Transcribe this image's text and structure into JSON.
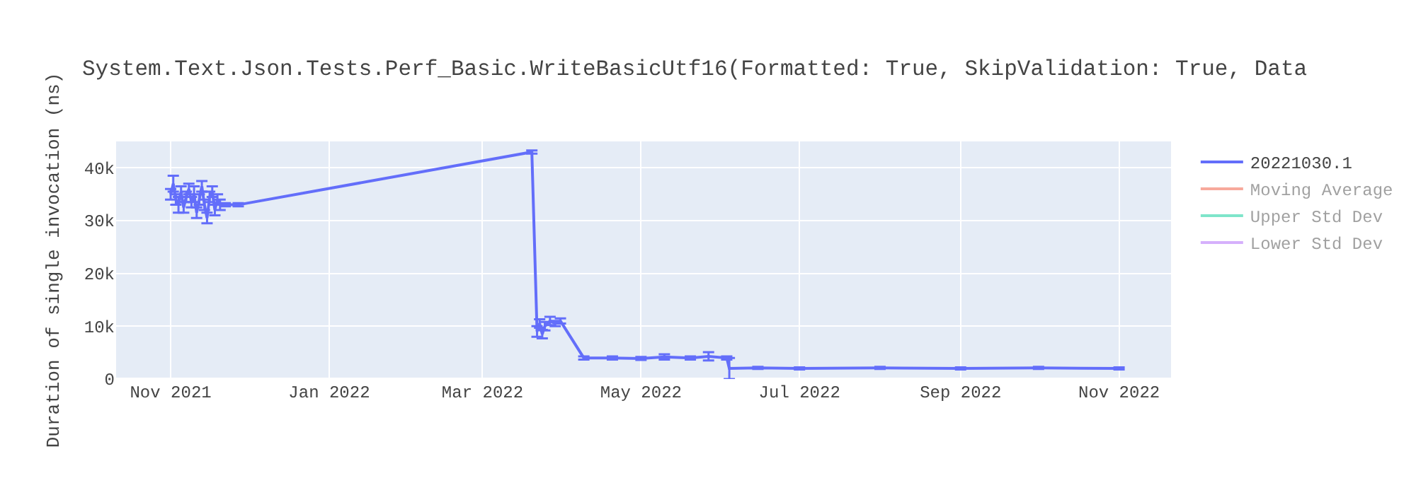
{
  "chart_data": {
    "type": "line",
    "title": "System.Text.Json.Tests.Perf_Basic.WriteBasicUtf16(Formatted: True, SkipValidation: True, Data",
    "ylabel": "Duration of single invocation (ns)",
    "x": [
      "2021-11-01",
      "2021-11-02",
      "2021-11-03",
      "2021-11-04",
      "2021-11-05",
      "2021-11-06",
      "2021-11-07",
      "2021-11-08",
      "2021-11-09",
      "2021-11-10",
      "2021-11-11",
      "2021-11-12",
      "2021-11-13",
      "2021-11-14",
      "2021-11-15",
      "2021-11-16",
      "2021-11-17",
      "2021-11-18",
      "2021-11-19",
      "2021-11-20",
      "2021-11-22",
      "2021-11-27",
      "2022-03-20",
      "2022-03-22",
      "2022-03-23",
      "2022-03-24",
      "2022-03-25",
      "2022-03-27",
      "2022-03-29",
      "2022-03-31",
      "2022-04-09",
      "2022-04-20",
      "2022-05-01",
      "2022-05-10",
      "2022-05-20",
      "2022-05-27",
      "2022-06-03",
      "2022-06-04",
      "2022-06-15",
      "2022-07-01",
      "2022-08-01",
      "2022-09-01",
      "2022-10-01",
      "2022-11-01"
    ],
    "series": [
      {
        "name": "20221030.1",
        "color": "#636efa",
        "values": [
          35000,
          37000,
          34000,
          33000,
          35500,
          32500,
          34500,
          36000,
          33500,
          35000,
          31500,
          34000,
          36500,
          33000,
          30500,
          34500,
          35500,
          32000,
          34000,
          33000,
          33000,
          33000,
          43000,
          9000,
          10500,
          8500,
          10000,
          11000,
          10500,
          11000,
          4000,
          4000,
          3900,
          4200,
          4000,
          4300,
          4000,
          2000,
          2100,
          2000,
          2100,
          2000,
          2100,
          2000
        ],
        "errors": [
          1000,
          1500,
          1000,
          1500,
          1000,
          1000,
          1000,
          1000,
          1000,
          1500,
          1000,
          1000,
          1000,
          1000,
          1000,
          1000,
          1000,
          1000,
          1000,
          1000,
          300,
          300,
          300,
          1000,
          800,
          800,
          800,
          800,
          500,
          500,
          300,
          300,
          300,
          500,
          300,
          800,
          300,
          2000,
          200,
          200,
          200,
          200,
          200,
          200
        ]
      },
      {
        "name": "Moving Average",
        "color": "#ef553b",
        "values": [
          null,
          null,
          null,
          null,
          null,
          null,
          null,
          null,
          null,
          null,
          null,
          null,
          null,
          null,
          null,
          null,
          null,
          null,
          null,
          null,
          null,
          null,
          null,
          null,
          null,
          null,
          null,
          null,
          null,
          null,
          null,
          null,
          null,
          null,
          null,
          null,
          null,
          null,
          null,
          null,
          null,
          null,
          null,
          null
        ]
      },
      {
        "name": "Upper Std Dev",
        "color": "#00cc96",
        "values": [
          null,
          null,
          null,
          null,
          null,
          null,
          null,
          null,
          null,
          null,
          null,
          null,
          null,
          null,
          null,
          null,
          null,
          null,
          null,
          null,
          null,
          null,
          null,
          null,
          null,
          null,
          null,
          null,
          null,
          null,
          null,
          null,
          null,
          null,
          null,
          null,
          null,
          null,
          null,
          null,
          null,
          null,
          null,
          null
        ]
      },
      {
        "name": "Lower Std Dev",
        "color": "#ab63fa",
        "values": [
          null,
          null,
          null,
          null,
          null,
          null,
          null,
          null,
          null,
          null,
          null,
          null,
          null,
          null,
          null,
          null,
          null,
          null,
          null,
          null,
          null,
          null,
          null,
          null,
          null,
          null,
          null,
          null,
          null,
          null,
          null,
          null,
          null,
          null,
          null,
          null,
          null,
          null,
          null,
          null,
          null,
          null,
          null,
          null
        ]
      }
    ],
    "xlim": [
      "2021-10-11",
      "2022-11-21"
    ],
    "xticks": [
      {
        "value": "2021-11-01",
        "label": "Nov 2021"
      },
      {
        "value": "2022-01-01",
        "label": "Jan 2022"
      },
      {
        "value": "2022-03-01",
        "label": "Mar 2022"
      },
      {
        "value": "2022-05-01",
        "label": "May 2022"
      },
      {
        "value": "2022-07-01",
        "label": "Jul 2022"
      },
      {
        "value": "2022-09-01",
        "label": "Sep 2022"
      },
      {
        "value": "2022-11-01",
        "label": "Nov 2022"
      }
    ],
    "ylim": [
      0,
      45000
    ],
    "yticks": [
      0,
      {
        "value": 10000,
        "label": "10k"
      },
      {
        "value": 20000,
        "label": "20k"
      },
      {
        "value": 30000,
        "label": "30k"
      },
      {
        "value": 40000,
        "label": "40k"
      }
    ],
    "grid": true,
    "legend": "top right",
    "line_style": "solid"
  }
}
